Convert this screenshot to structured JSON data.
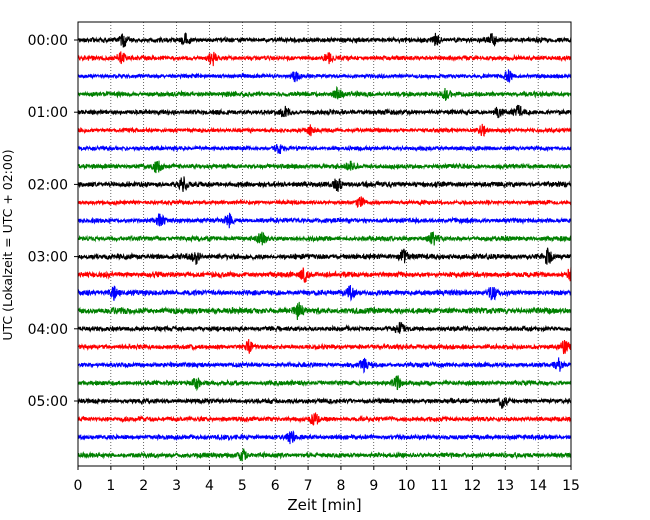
{
  "chart_data": {
    "type": "line",
    "title": "",
    "xlabel": "Zeit  [min]",
    "ylabel": "UTC (Lokalzeit = UTC + 02:00)",
    "xlim": [
      0,
      15
    ],
    "x_ticks": [
      0,
      1,
      2,
      3,
      4,
      5,
      6,
      7,
      8,
      9,
      10,
      11,
      12,
      13,
      14,
      15
    ],
    "x_tick_labels": [
      "0",
      "1",
      "2",
      "3",
      "4",
      "5",
      "6",
      "7",
      "8",
      "9",
      "10",
      "11",
      "12",
      "13",
      "14",
      "15"
    ],
    "y_tick_labels": [
      {
        "label": "00:00",
        "row": 0
      },
      {
        "label": "01:00",
        "row": 4
      },
      {
        "label": "02:00",
        "row": 8
      },
      {
        "label": "03:00",
        "row": 12
      },
      {
        "label": "04:00",
        "row": 16
      },
      {
        "label": "05:00",
        "row": 20
      }
    ],
    "grid": "vertical dotted",
    "rows": 24,
    "row_interval_minutes": 15,
    "color_cycle": [
      "#000000",
      "#ff0000",
      "#0000ff",
      "#008000"
    ],
    "series": [
      {
        "start": "00:00",
        "color": "#000000",
        "events_min": [
          1.4,
          3.3,
          10.9,
          12.6
        ],
        "amplitude": 0.35
      },
      {
        "start": "00:15",
        "color": "#ff0000",
        "events_min": [
          1.3,
          4.1,
          7.6
        ],
        "amplitude": 0.35
      },
      {
        "start": "00:30",
        "color": "#0000ff",
        "events_min": [
          6.6,
          13.1
        ],
        "amplitude": 0.3
      },
      {
        "start": "00:45",
        "color": "#008000",
        "events_min": [
          7.9,
          11.2
        ],
        "amplitude": 0.35
      },
      {
        "start": "01:00",
        "color": "#000000",
        "events_min": [
          6.3,
          12.8,
          13.4
        ],
        "amplitude": 0.35
      },
      {
        "start": "01:15",
        "color": "#ff0000",
        "events_min": [
          7.1,
          12.3
        ],
        "amplitude": 0.3
      },
      {
        "start": "01:30",
        "color": "#0000ff",
        "events_min": [
          6.1
        ],
        "amplitude": 0.3
      },
      {
        "start": "01:45",
        "color": "#008000",
        "events_min": [
          2.4,
          8.3
        ],
        "amplitude": 0.35
      },
      {
        "start": "02:00",
        "color": "#000000",
        "events_min": [
          3.2,
          7.9
        ],
        "amplitude": 0.4
      },
      {
        "start": "02:15",
        "color": "#ff0000",
        "events_min": [
          8.6
        ],
        "amplitude": 0.3
      },
      {
        "start": "02:30",
        "color": "#0000ff",
        "events_min": [
          2.5,
          4.6
        ],
        "amplitude": 0.35
      },
      {
        "start": "02:45",
        "color": "#008000",
        "events_min": [
          5.6,
          10.8
        ],
        "amplitude": 0.35
      },
      {
        "start": "03:00",
        "color": "#000000",
        "events_min": [
          3.6,
          9.9,
          14.3
        ],
        "amplitude": 0.4
      },
      {
        "start": "03:15",
        "color": "#ff0000",
        "events_min": [
          6.9,
          15.0
        ],
        "amplitude": 0.4
      },
      {
        "start": "03:30",
        "color": "#0000ff",
        "events_min": [
          1.1,
          8.3,
          12.6
        ],
        "amplitude": 0.4
      },
      {
        "start": "03:45",
        "color": "#008000",
        "events_min": [
          6.7
        ],
        "amplitude": 0.45
      },
      {
        "start": "04:00",
        "color": "#000000",
        "events_min": [
          9.8
        ],
        "amplitude": 0.35
      },
      {
        "start": "04:15",
        "color": "#ff0000",
        "events_min": [
          5.2,
          14.8
        ],
        "amplitude": 0.35
      },
      {
        "start": "04:30",
        "color": "#0000ff",
        "events_min": [
          8.7,
          14.6
        ],
        "amplitude": 0.35
      },
      {
        "start": "04:45",
        "color": "#008000",
        "events_min": [
          3.6,
          9.7
        ],
        "amplitude": 0.35
      },
      {
        "start": "05:00",
        "color": "#000000",
        "events_min": [
          12.9
        ],
        "amplitude": 0.35
      },
      {
        "start": "05:15",
        "color": "#ff0000",
        "events_min": [
          7.2
        ],
        "amplitude": 0.35
      },
      {
        "start": "05:30",
        "color": "#0000ff",
        "events_min": [
          6.5
        ],
        "amplitude": 0.35
      },
      {
        "start": "05:45",
        "color": "#008000",
        "events_min": [
          5.0
        ],
        "amplitude": 0.35
      }
    ]
  }
}
